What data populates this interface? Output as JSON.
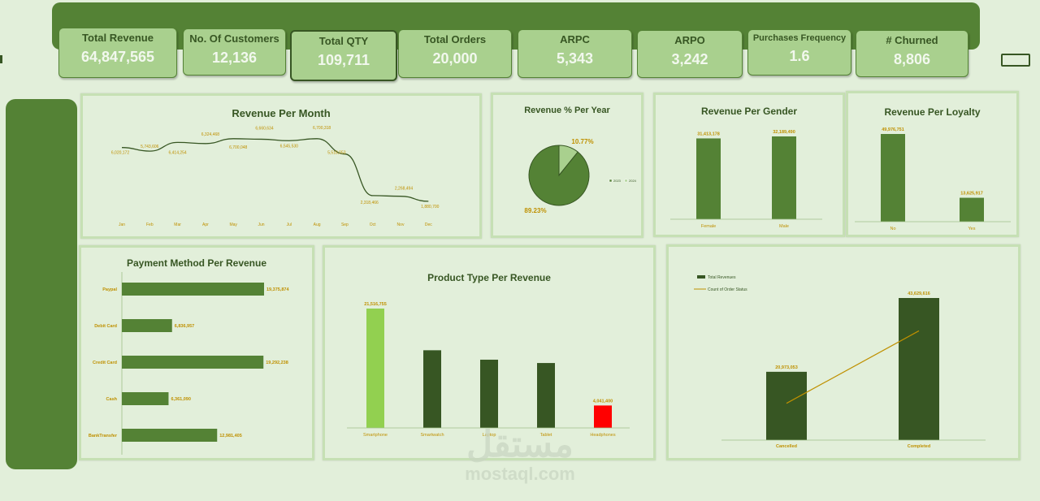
{
  "kpis": [
    {
      "title": "Total Revenue",
      "value": "64,847,565"
    },
    {
      "title": "No. Of Customers",
      "value": "12,136"
    },
    {
      "title": "Total QTY",
      "value": "109,711"
    },
    {
      "title": "Total Orders",
      "value": "20,000"
    },
    {
      "title": "ARPC",
      "value": "5,343"
    },
    {
      "title": "ARPO",
      "value": "3,242"
    },
    {
      "title": "Purchases Frequency",
      "value": "1.6"
    },
    {
      "title": "# Churned",
      "value": "8,806"
    }
  ],
  "watermark": {
    "arabic": "مستقل",
    "latin": "mostaql.com"
  },
  "colors": {
    "dark": "#375623",
    "mid": "#548235",
    "light": "#a9d08e",
    "bright": "#92d050",
    "red": "#ff0000",
    "gold": "#bf9000"
  },
  "chart_data": [
    {
      "id": "revenue_month",
      "type": "line",
      "title": "Revenue Per Month",
      "categories": [
        "Jan",
        "Feb",
        "Mar",
        "Apr",
        "May",
        "Jun",
        "Jul",
        "Aug",
        "Sep",
        "Oct",
        "Nov",
        "Dec"
      ],
      "values": [
        6020172,
        5743606,
        6414254,
        6324468,
        6700048,
        6660634,
        6545530,
        6700318,
        5518053,
        2318466,
        2268494,
        1880700
      ],
      "labels": [
        "6,020,172",
        "5,743,606",
        "6,414,254",
        "6,324,468",
        "6,700,048",
        "6,660,634",
        "6,545,530",
        "6,700,318",
        "5,518,053",
        "2,318,466",
        "2,268,494",
        "1,880,700"
      ]
    },
    {
      "id": "revenue_year",
      "type": "pie",
      "title": "Revenue % Per Year",
      "slices": [
        {
          "name": "2023",
          "value": 89.23,
          "label": "89.23%"
        },
        {
          "name": "2024",
          "value": 10.77,
          "label": "10.77%"
        }
      ]
    },
    {
      "id": "revenue_gender",
      "type": "bar",
      "title": "Revenue Per Gender",
      "categories": [
        "Female",
        "Male"
      ],
      "values": [
        31413178,
        32189490
      ],
      "labels": [
        "31,413,178",
        "32,189,490"
      ]
    },
    {
      "id": "revenue_loyalty",
      "type": "bar",
      "title": "Revenue Per Loyalty",
      "categories": [
        "No",
        "Yes"
      ],
      "values": [
        49976751,
        13625917
      ],
      "labels": [
        "49,976,751",
        "13,625,917"
      ]
    },
    {
      "id": "payment_method",
      "type": "bar",
      "orientation": "horizontal",
      "title": "Payment Method Per Revenue",
      "categories": [
        "Paypal",
        "Debit Card",
        "Credit Card",
        "Cash",
        "BankTransfer"
      ],
      "values": [
        19375874,
        6836957,
        19292238,
        6361090,
        12981405
      ],
      "labels": [
        "19,375,874",
        "6,836,957",
        "19,292,238",
        "6,361,090",
        "12,981,405"
      ]
    },
    {
      "id": "product_type",
      "type": "bar",
      "title": "Product Type Per Revenue",
      "categories": [
        "Smartphone",
        "Smartwatch",
        "Laptop",
        "Tablet",
        "Headphones"
      ],
      "values": [
        21516755,
        14000000,
        12300000,
        11700000,
        4041400
      ],
      "labels": [
        "21,516,755",
        "",
        "",
        "",
        "4,041,400"
      ]
    },
    {
      "id": "order_status",
      "type": "bar",
      "title": "",
      "categories": [
        "Cancelled",
        "Completed"
      ],
      "series": [
        {
          "name": "Total Revenues",
          "values": [
            20973053,
            43629616
          ],
          "labels": [
            "20,973,053",
            "43,629,616"
          ]
        },
        {
          "name": "Count of Order Status",
          "type": "line",
          "values": [
            3200,
            9500
          ]
        }
      ]
    }
  ]
}
